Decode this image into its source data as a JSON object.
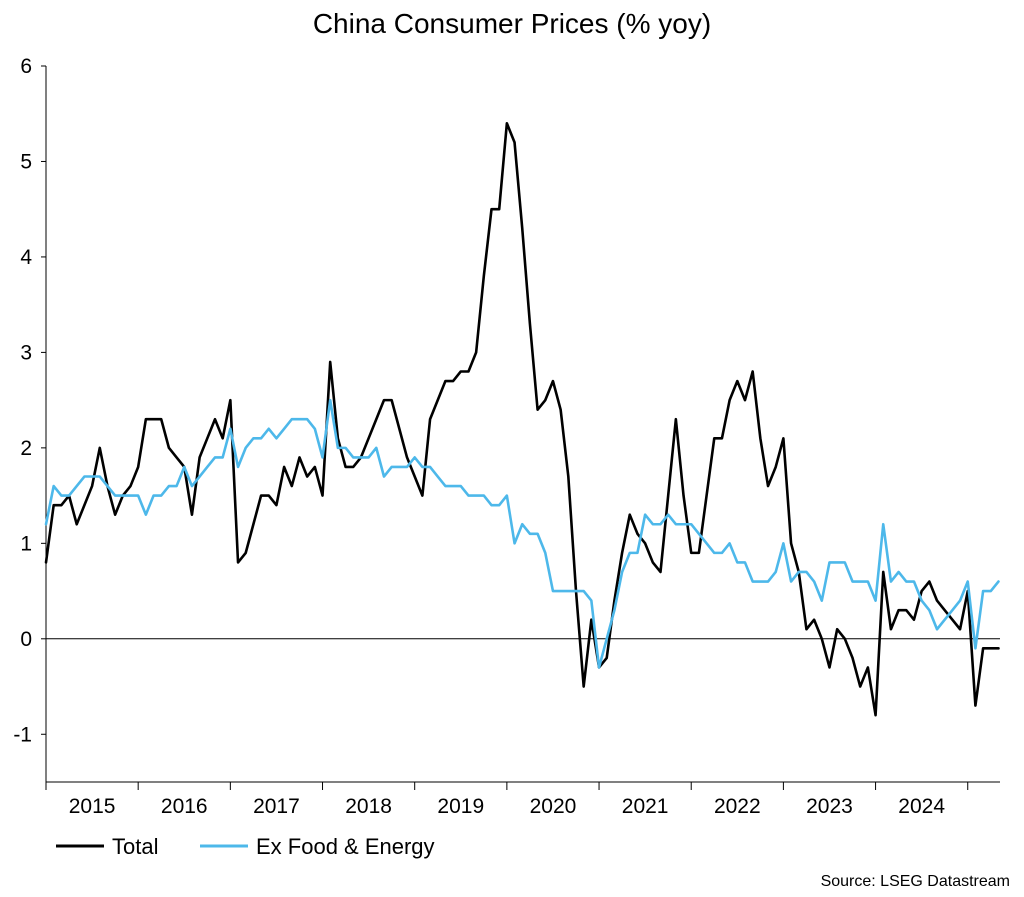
{
  "chart_data": {
    "type": "line",
    "title": "China Consumer Prices (% yoy)",
    "xlabel": "",
    "ylabel": "",
    "ylim": [
      -1.5,
      6
    ],
    "yticks": [
      6,
      5,
      4,
      3,
      2,
      1,
      0,
      -1
    ],
    "xlim": [
      2015.0,
      2025.35
    ],
    "year_labels": [
      "2015",
      "2016",
      "2017",
      "2018",
      "2019",
      "2020",
      "2021",
      "2022",
      "2023",
      "2024"
    ],
    "legend": {
      "position": "bottom-left",
      "entries": [
        "Total",
        "Ex Food & Energy"
      ]
    },
    "source": "Source: LSEG Datastream",
    "colors": {
      "Total": "#000000",
      "Ex Food & Energy": "#4db8ea"
    },
    "series": [
      {
        "name": "Total",
        "start": 2015.0,
        "step_months": 1,
        "values": [
          0.8,
          1.4,
          1.4,
          1.5,
          1.2,
          1.4,
          1.6,
          2.0,
          1.6,
          1.3,
          1.5,
          1.6,
          1.8,
          2.3,
          2.3,
          2.3,
          2.0,
          1.9,
          1.8,
          1.3,
          1.9,
          2.1,
          2.3,
          2.1,
          2.5,
          0.8,
          0.9,
          1.2,
          1.5,
          1.5,
          1.4,
          1.8,
          1.6,
          1.9,
          1.7,
          1.8,
          1.5,
          2.9,
          2.1,
          1.8,
          1.8,
          1.9,
          2.1,
          2.3,
          2.5,
          2.5,
          2.2,
          1.9,
          1.7,
          1.5,
          2.3,
          2.5,
          2.7,
          2.7,
          2.8,
          2.8,
          3.0,
          3.8,
          4.5,
          4.5,
          5.4,
          5.2,
          4.3,
          3.3,
          2.4,
          2.5,
          2.7,
          2.4,
          1.7,
          0.5,
          -0.5,
          0.2,
          -0.3,
          -0.2,
          0.4,
          0.9,
          1.3,
          1.1,
          1.0,
          0.8,
          0.7,
          1.5,
          2.3,
          1.5,
          0.9,
          0.9,
          1.5,
          2.1,
          2.1,
          2.5,
          2.7,
          2.5,
          2.8,
          2.1,
          1.6,
          1.8,
          2.1,
          1.0,
          0.7,
          0.1,
          0.2,
          0.0,
          -0.3,
          0.1,
          0.0,
          -0.2,
          -0.5,
          -0.3,
          -0.8,
          0.7,
          0.1,
          0.3,
          0.3,
          0.2,
          0.5,
          0.6,
          0.4,
          0.3,
          0.2,
          0.1,
          0.5,
          -0.7,
          -0.1,
          -0.1,
          -0.1
        ]
      },
      {
        "name": "Ex Food & Energy",
        "start": 2015.0,
        "step_months": 1,
        "values": [
          1.2,
          1.6,
          1.5,
          1.5,
          1.6,
          1.7,
          1.7,
          1.7,
          1.6,
          1.5,
          1.5,
          1.5,
          1.5,
          1.3,
          1.5,
          1.5,
          1.6,
          1.6,
          1.8,
          1.6,
          1.7,
          1.8,
          1.9,
          1.9,
          2.2,
          1.8,
          2.0,
          2.1,
          2.1,
          2.2,
          2.1,
          2.2,
          2.3,
          2.3,
          2.3,
          2.2,
          1.9,
          2.5,
          2.0,
          2.0,
          1.9,
          1.9,
          1.9,
          2.0,
          1.7,
          1.8,
          1.8,
          1.8,
          1.9,
          1.8,
          1.8,
          1.7,
          1.6,
          1.6,
          1.6,
          1.5,
          1.5,
          1.5,
          1.4,
          1.4,
          1.5,
          1.0,
          1.2,
          1.1,
          1.1,
          0.9,
          0.5,
          0.5,
          0.5,
          0.5,
          0.5,
          0.4,
          -0.3,
          0.0,
          0.3,
          0.7,
          0.9,
          0.9,
          1.3,
          1.2,
          1.2,
          1.3,
          1.2,
          1.2,
          1.2,
          1.1,
          1.0,
          0.9,
          0.9,
          1.0,
          0.8,
          0.8,
          0.6,
          0.6,
          0.6,
          0.7,
          1.0,
          0.6,
          0.7,
          0.7,
          0.6,
          0.4,
          0.8,
          0.8,
          0.8,
          0.6,
          0.6,
          0.6,
          0.4,
          1.2,
          0.6,
          0.7,
          0.6,
          0.6,
          0.4,
          0.3,
          0.1,
          0.2,
          0.3,
          0.4,
          0.6,
          -0.1,
          0.5,
          0.5,
          0.6
        ]
      }
    ]
  }
}
